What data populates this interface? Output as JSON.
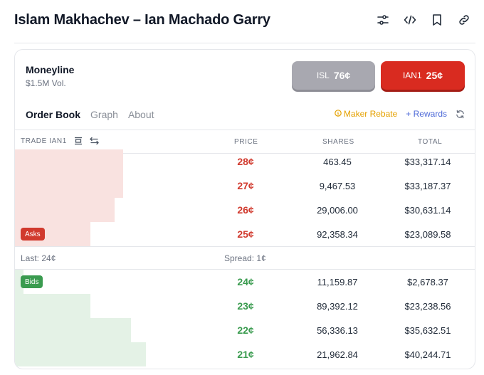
{
  "header": {
    "title": "Islam Makhachev – Ian Machado Garry",
    "icons": [
      "sliders-icon",
      "code-icon",
      "bookmark-icon",
      "link-icon"
    ]
  },
  "market": {
    "title": "Moneyline",
    "volume": "$1.5M Vol.",
    "buttons": [
      {
        "label": "ISL",
        "price": "76¢",
        "color": "#a8a8b0"
      },
      {
        "label": "IAN1",
        "price": "25¢",
        "color": "#d92b20"
      }
    ]
  },
  "tabs": [
    {
      "label": "Order Book",
      "active": true
    },
    {
      "label": "Graph",
      "active": false
    },
    {
      "label": "About",
      "active": false
    }
  ],
  "links": {
    "maker_rebate": "Maker Rebate",
    "rewards": "+ Rewards"
  },
  "columns": {
    "trade": "TRADE IAN1",
    "price": "PRICE",
    "shares": "SHARES",
    "total": "TOTAL"
  },
  "asks_label": "Asks",
  "bids_label": "Bids",
  "asks": [
    {
      "price": "28¢",
      "shares": "463.45",
      "total": "$33,317.14",
      "depth": 0.235
    },
    {
      "price": "27¢",
      "shares": "9,467.53",
      "total": "$33,187.37",
      "depth": 0.234
    },
    {
      "price": "26¢",
      "shares": "29,006.00",
      "total": "$30,631.14",
      "depth": 0.216
    },
    {
      "price": "25¢",
      "shares": "92,358.34",
      "total": "$23,089.58",
      "depth": 0.163
    }
  ],
  "spread_row": {
    "last": "Last: 24¢",
    "spread": "Spread: 1¢"
  },
  "bids": [
    {
      "price": "24¢",
      "shares": "11,159.87",
      "total": "$2,678.37",
      "depth": 0.019
    },
    {
      "price": "23¢",
      "shares": "89,392.12",
      "total": "$23,238.56",
      "depth": 0.164
    },
    {
      "price": "22¢",
      "shares": "56,336.13",
      "total": "$35,632.51",
      "depth": 0.252
    },
    {
      "price": "21¢",
      "shares": "21,962.84",
      "total": "$40,244.71",
      "depth": 0.284
    }
  ],
  "colors": {
    "ask": "#d13a2e",
    "bid": "#3a9b4f",
    "maker": "#e5a100",
    "rewards": "#4f6bd8"
  }
}
